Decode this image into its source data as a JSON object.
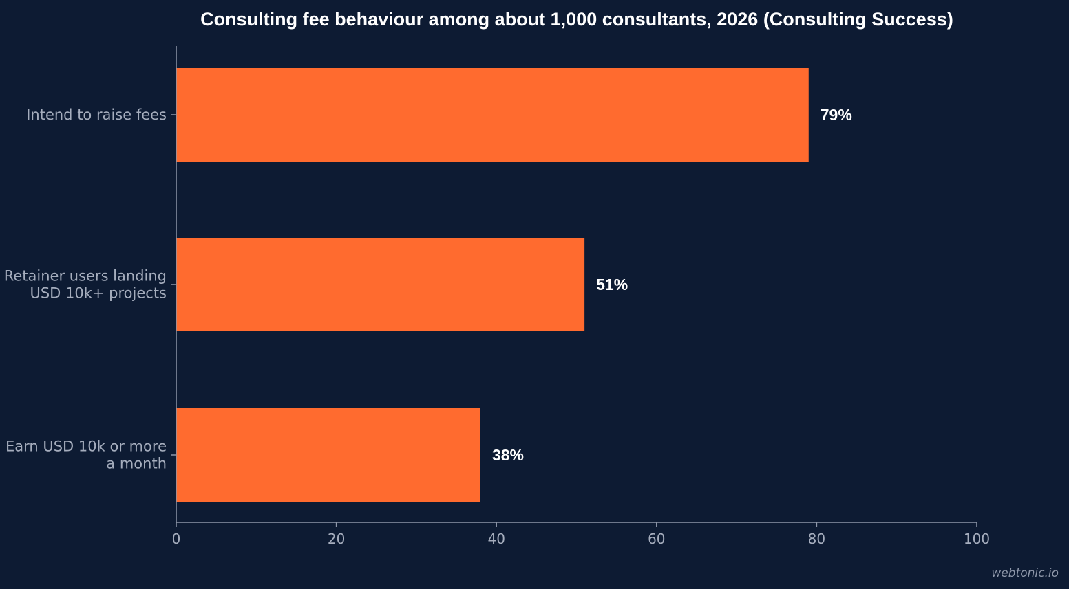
{
  "colors": {
    "background": "#0d1b33",
    "bar": "#ff6b2f",
    "title": "#ffffff",
    "axis": "#8f98aa",
    "category_label": "#a5adbd",
    "tick_label": "#a5adbd",
    "value_label": "#ffffff",
    "watermark": "#8f98aa"
  },
  "watermark": "webtonic.io",
  "chart_data": {
    "type": "bar",
    "orientation": "horizontal",
    "title": "Consulting fee behaviour among about 1,000 consultants, 2026 (Consulting Success)",
    "xlabel": "",
    "ylabel": "",
    "categories": [
      [
        "Intend to raise fees"
      ],
      [
        "Retainer users landing",
        "USD 10k+ projects"
      ],
      [
        "Earn USD 10k or more",
        "a month"
      ]
    ],
    "values": [
      79,
      51,
      38
    ],
    "value_labels": [
      "79%",
      "51%",
      "38%"
    ],
    "xlim": [
      0,
      100
    ],
    "xticks": [
      0,
      20,
      40,
      60,
      80,
      100
    ],
    "xtick_labels": [
      "0",
      "20",
      "40",
      "60",
      "80",
      "100"
    ],
    "grid": false,
    "legend": "none"
  }
}
